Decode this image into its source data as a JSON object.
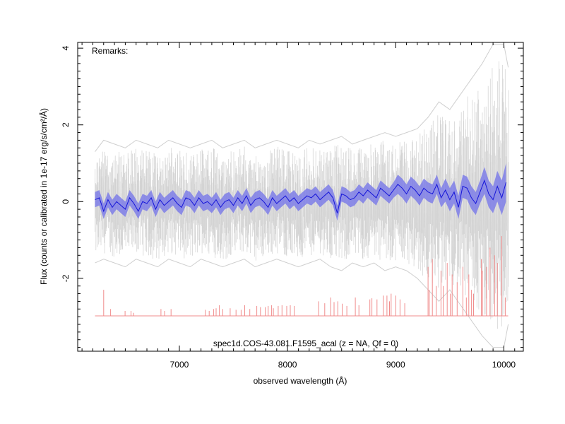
{
  "chart_data": {
    "type": "line",
    "title": "",
    "xlabel": "observed wavelength (Å)",
    "ylabel": "Flux (counts or calibrated in 1e-17 erg/s/cm²/Å)",
    "xlim": [
      6060,
      10180
    ],
    "ylim": [
      -3.9,
      4.15
    ],
    "xticks": [
      7000,
      8000,
      9000,
      10000
    ],
    "yticks": [
      -2,
      0,
      2,
      4
    ],
    "grid": false,
    "annotations": {
      "remarks": "Remarks:",
      "spectrum_id": "spec1d.COS-43.081.F1595_acal (z =   NA, Qf = 0)"
    },
    "colors": {
      "raw": "#cfcfcf",
      "smoothed_band": "#7e7ee8",
      "smoothed_line": "#1515d8",
      "sky": "#f08c8c"
    },
    "series": [
      {
        "role": "raw_2d_traces",
        "x": [
          6220,
          6300,
          6400,
          6500,
          6600,
          6700,
          6800,
          6900,
          7000,
          7100,
          7200,
          7300,
          7400,
          7500,
          7600,
          7700,
          7800,
          7900,
          8000,
          8100,
          8200,
          8300,
          8400,
          8500,
          8600,
          8700,
          8800,
          8900,
          9000,
          9100,
          9200,
          9300,
          9400,
          9500,
          9600,
          9700,
          9800,
          9900,
          10000,
          10040
        ],
        "upper": [
          1.3,
          1.6,
          1.5,
          1.4,
          1.6,
          1.5,
          1.4,
          1.6,
          1.5,
          1.4,
          1.5,
          1.6,
          1.4,
          1.5,
          1.6,
          1.4,
          1.5,
          1.6,
          1.5,
          1.4,
          1.6,
          1.5,
          1.6,
          1.7,
          1.5,
          1.6,
          1.7,
          1.8,
          1.7,
          1.8,
          1.9,
          2.2,
          2.6,
          2.4,
          2.8,
          3.2,
          3.6,
          4.1,
          4.1,
          3.5
        ],
        "lower": [
          -1.6,
          -1.5,
          -1.6,
          -1.7,
          -1.5,
          -1.6,
          -1.7,
          -1.5,
          -1.6,
          -1.7,
          -1.5,
          -1.6,
          -1.7,
          -1.6,
          -1.5,
          -1.7,
          -1.6,
          -1.5,
          -1.6,
          -1.7,
          -1.6,
          -1.5,
          -1.7,
          -1.8,
          -1.6,
          -1.7,
          -1.6,
          -1.8,
          -1.7,
          -1.8,
          -2.0,
          -2.3,
          -2.6,
          -2.3,
          -2.7,
          -3.1,
          -3.5,
          -3.8,
          -3.8,
          -3.2
        ]
      },
      {
        "role": "smoothed_flux",
        "x": [
          6220,
          6260,
          6300,
          6340,
          6380,
          6420,
          6460,
          6500,
          6540,
          6580,
          6620,
          6660,
          6700,
          6740,
          6780,
          6820,
          6860,
          6900,
          6940,
          6980,
          7020,
          7060,
          7100,
          7140,
          7180,
          7220,
          7260,
          7300,
          7340,
          7380,
          7420,
          7460,
          7500,
          7540,
          7580,
          7620,
          7660,
          7700,
          7740,
          7780,
          7820,
          7860,
          7900,
          7940,
          7980,
          8020,
          8060,
          8100,
          8140,
          8180,
          8220,
          8260,
          8300,
          8340,
          8380,
          8420,
          8460,
          8500,
          8540,
          8580,
          8620,
          8660,
          8700,
          8740,
          8780,
          8820,
          8860,
          8900,
          8940,
          8980,
          9020,
          9060,
          9100,
          9140,
          9180,
          9220,
          9260,
          9300,
          9340,
          9380,
          9420,
          9460,
          9500,
          9540,
          9580,
          9620,
          9660,
          9700,
          9740,
          9780,
          9820,
          9860,
          9900,
          9940,
          9980,
          10020
        ],
        "y": [
          0.05,
          0.1,
          -0.25,
          0.05,
          -0.15,
          0.0,
          -0.1,
          -0.2,
          0.1,
          -0.05,
          -0.25,
          0.0,
          -0.05,
          0.1,
          -0.2,
          0.05,
          -0.1,
          0.0,
          0.1,
          -0.05,
          -0.15,
          0.1,
          0.05,
          -0.1,
          0.1,
          -0.05,
          0.0,
          -0.1,
          0.05,
          -0.15,
          0.0,
          0.05,
          -0.1,
          0.1,
          -0.05,
          0.15,
          -0.1,
          0.05,
          0.1,
          0.0,
          -0.15,
          0.1,
          -0.05,
          0.05,
          0.15,
          0.0,
          0.1,
          -0.05,
          0.05,
          0.15,
          0.1,
          0.2,
          0.05,
          0.15,
          0.25,
          0.1,
          -0.3,
          0.2,
          0.15,
          0.05,
          0.1,
          0.25,
          0.15,
          0.3,
          0.2,
          0.1,
          0.35,
          0.25,
          0.15,
          0.3,
          0.45,
          0.35,
          0.2,
          0.4,
          0.3,
          0.15,
          0.35,
          0.25,
          0.2,
          0.45,
          0.1,
          0.3,
          0.05,
          0.25,
          -0.15,
          0.4,
          0.35,
          0.1,
          -0.05,
          0.25,
          0.55,
          0.2,
          0.05,
          0.4,
          0.1,
          0.5
        ],
        "err": [
          0.2,
          0.2,
          0.2,
          0.2,
          0.2,
          0.2,
          0.2,
          0.2,
          0.2,
          0.2,
          0.2,
          0.2,
          0.2,
          0.2,
          0.2,
          0.2,
          0.2,
          0.2,
          0.2,
          0.2,
          0.2,
          0.2,
          0.2,
          0.2,
          0.2,
          0.2,
          0.2,
          0.2,
          0.2,
          0.2,
          0.2,
          0.2,
          0.2,
          0.2,
          0.2,
          0.2,
          0.2,
          0.2,
          0.2,
          0.2,
          0.2,
          0.2,
          0.2,
          0.2,
          0.2,
          0.2,
          0.2,
          0.2,
          0.2,
          0.2,
          0.2,
          0.2,
          0.2,
          0.2,
          0.2,
          0.2,
          0.2,
          0.2,
          0.2,
          0.2,
          0.2,
          0.2,
          0.2,
          0.2,
          0.2,
          0.2,
          0.2,
          0.2,
          0.2,
          0.2,
          0.25,
          0.25,
          0.25,
          0.25,
          0.25,
          0.25,
          0.25,
          0.25,
          0.25,
          0.25,
          0.25,
          0.3,
          0.3,
          0.3,
          0.3,
          0.3,
          0.3,
          0.3,
          0.3,
          0.3,
          0.35,
          0.35,
          0.35,
          0.4,
          0.45,
          0.5
        ]
      },
      {
        "role": "sky_spectrum",
        "baseline": -2.98,
        "baseline_x": [
          6220,
          10040
        ],
        "lines_x": [
          6300,
          6364,
          6498,
          6553,
          6577,
          6830,
          6863,
          6923,
          7240,
          7276,
          7316,
          7340,
          7370,
          7401,
          7470,
          7524,
          7571,
          7604,
          7651,
          7716,
          7750,
          7794,
          7821,
          7853,
          7869,
          7914,
          7949,
          7993,
          8025,
          8062,
          8288,
          8344,
          8399,
          8430,
          8465,
          8505,
          8548,
          8627,
          8660,
          8761,
          8780,
          8827,
          8885,
          8919,
          8943,
          8958,
          9001,
          9040,
          9084,
          9299,
          9310,
          9339,
          9375,
          9419,
          9439,
          9476,
          9505,
          9522,
          9568,
          9621,
          9653,
          9676,
          9701,
          9720,
          9792,
          9802,
          9840,
          9872,
          9914,
          9940,
          9979,
          10013
        ],
        "lines_y": [
          -2.3,
          -2.8,
          -2.85,
          -2.85,
          -2.9,
          -2.8,
          -2.85,
          -2.8,
          -2.82,
          -2.85,
          -2.8,
          -2.78,
          -2.7,
          -2.8,
          -2.78,
          -2.82,
          -2.82,
          -2.7,
          -2.8,
          -2.72,
          -2.75,
          -2.75,
          -2.72,
          -2.7,
          -2.78,
          -2.72,
          -2.7,
          -2.72,
          -2.7,
          -2.72,
          -2.6,
          -2.65,
          -2.5,
          -2.62,
          -2.6,
          -2.66,
          -2.72,
          -2.5,
          -2.7,
          -2.55,
          -2.52,
          -2.55,
          -2.45,
          -2.45,
          -2.6,
          -2.4,
          -2.45,
          -2.55,
          -2.65,
          -1.7,
          -2.3,
          -1.5,
          -2.2,
          -1.8,
          -2.2,
          -1.6,
          -2.4,
          -1.9,
          -2.1,
          -1.7,
          -2.5,
          -1.9,
          -2.3,
          -2.4,
          -1.5,
          -1.8,
          -1.7,
          -1.2,
          -1.4,
          -1.6,
          -0.9,
          -2.5
        ]
      }
    ]
  }
}
